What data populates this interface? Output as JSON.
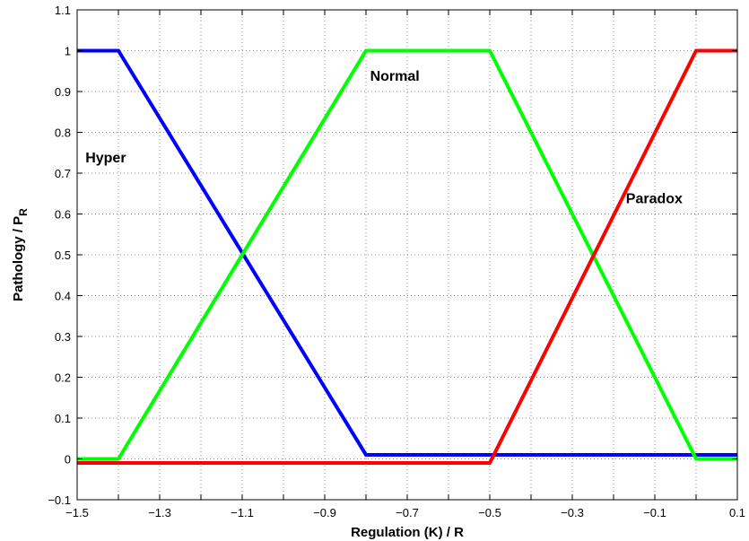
{
  "chart_data": {
    "type": "line",
    "xlabel": "Regulation (K) / R",
    "ylabel_main": "Pathology / P",
    "ylabel_sub": "R",
    "xlim": [
      -1.5,
      0.1
    ],
    "ylim": [
      -0.1,
      1.1
    ],
    "grid": true,
    "x_ticks": [
      -1.5,
      -1.3,
      -1.1,
      -0.9,
      -0.7,
      -0.5,
      -0.3,
      -0.1,
      0.1
    ],
    "x_tick_labels": [
      "−1.5",
      "−1.3",
      "−1.1",
      "−0.9",
      "−0.7",
      "−0.5",
      "−0.3",
      "−0.1",
      "0.1"
    ],
    "x_grid": [
      -1.5,
      -1.4,
      -1.3,
      -1.2,
      -1.1,
      -1.0,
      -0.9,
      -0.8,
      -0.7,
      -0.6,
      -0.5,
      -0.4,
      -0.3,
      -0.2,
      -0.1,
      0.0,
      0.1
    ],
    "y_ticks": [
      -0.1,
      0,
      0.1,
      0.2,
      0.3,
      0.4,
      0.5,
      0.6,
      0.7,
      0.8,
      0.9,
      1,
      1.1
    ],
    "y_tick_labels": [
      "−0.1",
      "0",
      "0.1",
      "0.2",
      "0.3",
      "0.4",
      "0.5",
      "0.6",
      "0.7",
      "0.8",
      "0.9",
      "1",
      "1.1"
    ],
    "series": [
      {
        "color": "#0000ff",
        "x": [
          -1.5,
          -1.4,
          -0.8,
          0.1
        ],
        "y": [
          1,
          1,
          0.01,
          0.01
        ]
      },
      {
        "color": "#00ff00",
        "x": [
          -1.5,
          -1.4,
          -0.8,
          -0.5,
          0.0,
          0.1
        ],
        "y": [
          0,
          0,
          1,
          1,
          0,
          0
        ]
      },
      {
        "color": "#ff0000",
        "x": [
          -1.5,
          -0.5,
          0.0,
          0.1
        ],
        "y": [
          -0.01,
          -0.01,
          1,
          1
        ]
      }
    ],
    "annotations": [
      {
        "text": "Hyper",
        "x": -1.48,
        "y": 0.74
      },
      {
        "text": "Normal",
        "x": -0.79,
        "y": 0.94
      },
      {
        "text": "Paradox",
        "x": -0.17,
        "y": 0.64
      }
    ]
  }
}
